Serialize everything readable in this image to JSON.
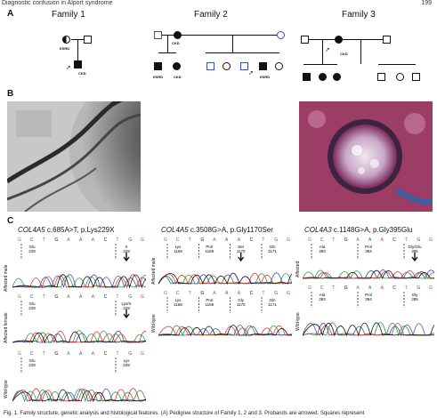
{
  "header": {
    "running_title": "Diagnostic confusion in Alport syndrome",
    "page_number": "199"
  },
  "panel_a": {
    "label": "A",
    "families": [
      {
        "title": "Family 1",
        "labels": [
          "ESRD",
          "CKD"
        ]
      },
      {
        "title": "Family 2",
        "labels": [
          "CKD",
          "ESRD",
          "CKD",
          "ESRD"
        ]
      },
      {
        "title": "Family 3",
        "labels": [
          "CKD"
        ]
      }
    ]
  },
  "panel_b": {
    "label": "B"
  },
  "panel_c": {
    "label": "C",
    "col1": {
      "gene": "COL4A5",
      "variant": " c.685A>T, p.Lys229X",
      "rows": [
        "Affected male",
        "Affected female",
        "Wild-type"
      ],
      "codons_mut": [
        {
          "aa": "Glu",
          "pos": "228"
        },
        {
          "aa": "X",
          "pos": "229"
        }
      ],
      "codons_het": [
        {
          "aa": "Glu",
          "pos": "228"
        },
        {
          "aa": "Lys/X",
          "pos": "229"
        }
      ],
      "codons_wt": [
        {
          "aa": "Glu",
          "pos": "228"
        },
        {
          "aa": "Lys",
          "pos": "229"
        }
      ]
    },
    "col2": {
      "gene": "COL4A5",
      "variant": " c.3508G>A, p.Gly1170Ser",
      "rows": [
        "Affected male",
        "Wild-type"
      ],
      "codons_mut": [
        {
          "aa": "Lys",
          "pos": "1168"
        },
        {
          "aa": "Prol",
          "pos": "1169"
        },
        {
          "aa": "Ser",
          "pos": "1170"
        },
        {
          "aa": "Gln",
          "pos": "1171"
        }
      ],
      "codons_wt": [
        {
          "aa": "Lys",
          "pos": "1168"
        },
        {
          "aa": "Prol",
          "pos": "1169"
        },
        {
          "aa": "Gly",
          "pos": "1170"
        },
        {
          "aa": "Gln",
          "pos": "1171"
        }
      ]
    },
    "col3": {
      "gene": "COL4A3",
      "variant": " c.1148G>A, p.Gly395Glu",
      "rows": [
        "Affected",
        "Wild-type"
      ],
      "codons_mut": [
        {
          "aa": "Ala",
          "pos": "393"
        },
        {
          "aa": "Prol",
          "pos": "394"
        },
        {
          "aa": "Gly/Glu",
          "pos": "395"
        }
      ],
      "codons_wt": [
        {
          "aa": "Ala",
          "pos": "393"
        },
        {
          "aa": "Prol",
          "pos": "394"
        },
        {
          "aa": "Gly",
          "pos": "395"
        }
      ]
    }
  },
  "caption": "Fig. 1. Family structure, genetic analysis and histological features. (A) Pedigree structure of Family 1, 2 and 3. Probands are arrowed. Squares represent",
  "colors": {
    "trace_green": "#2e9a3a",
    "trace_blue": "#3a4fb0",
    "trace_red": "#d23a2a",
    "trace_black": "#111111"
  }
}
